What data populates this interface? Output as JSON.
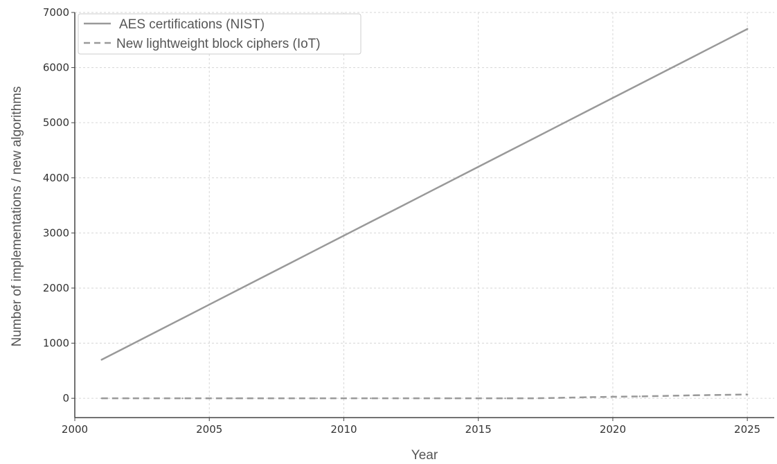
{
  "chart_data": {
    "type": "line",
    "title": "",
    "xlabel": "Year",
    "ylabel": "Number of implementations / new algorithms",
    "xlim": [
      2000,
      2026
    ],
    "ylim": [
      -350,
      7000
    ],
    "x_ticks": [
      2000,
      2005,
      2010,
      2015,
      2020,
      2025
    ],
    "y_ticks": [
      0,
      1000,
      2000,
      3000,
      4000,
      5000,
      6000,
      7000
    ],
    "grid": true,
    "legend_position": "top-left",
    "series": [
      {
        "name": "AES certifications (NIST)",
        "style": "solid",
        "color": "#999999",
        "x": [
          2001,
          2002,
          2003,
          2004,
          2005,
          2006,
          2007,
          2008,
          2009,
          2010,
          2011,
          2012,
          2013,
          2014,
          2015,
          2016,
          2017,
          2018,
          2019,
          2020,
          2021,
          2022,
          2023,
          2024,
          2025
        ],
        "values": [
          700,
          950,
          1200,
          1450,
          1700,
          1950,
          2200,
          2450,
          2700,
          2950,
          3200,
          3450,
          3700,
          3950,
          4200,
          4450,
          4700,
          4950,
          5200,
          5450,
          5700,
          5950,
          6200,
          6450,
          6700
        ]
      },
      {
        "name": "New lightweight block ciphers (IoT)",
        "style": "dashed",
        "color": "#999999",
        "x": [
          2001,
          2002,
          2003,
          2004,
          2005,
          2006,
          2007,
          2008,
          2009,
          2010,
          2011,
          2012,
          2013,
          2014,
          2015,
          2016,
          2017,
          2018,
          2019,
          2020,
          2021,
          2022,
          2023,
          2024,
          2025
        ],
        "values": [
          0,
          0,
          0,
          0,
          0,
          0,
          0,
          0,
          0,
          0,
          0,
          0,
          0,
          0,
          0,
          0,
          0,
          8,
          20,
          28,
          35,
          45,
          55,
          62,
          70
        ]
      }
    ]
  }
}
